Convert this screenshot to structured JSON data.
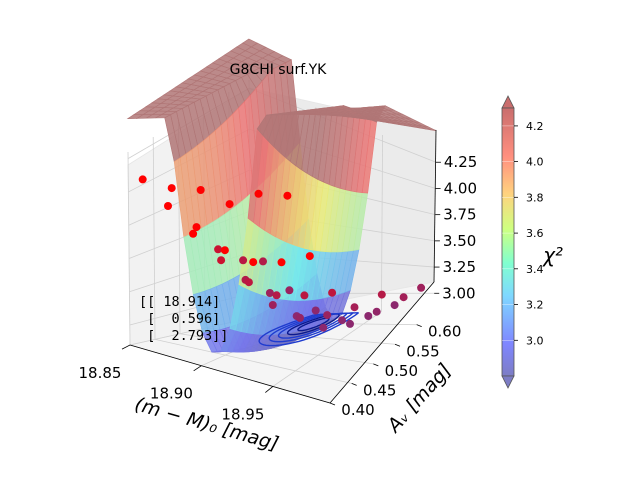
{
  "chart_data": {
    "type": "surface3d",
    "title": "G8CHI surf.YK",
    "xlabel": "(m − M)₀ [mag]",
    "ylabel": "Aᵥ [mag]",
    "zlabel": "",
    "xlim": [
      18.85,
      18.99
    ],
    "ylim": [
      0.4,
      0.64
    ],
    "zlim": [
      2.85,
      4.3
    ],
    "x_ticks": [
      "18.85",
      "18.90",
      "18.95"
    ],
    "y_ticks": [
      "0.40",
      "0.45",
      "0.50",
      "0.55",
      "0.60"
    ],
    "z_ticks": [
      "3.00",
      "3.25",
      "3.50",
      "3.75",
      "4.00",
      "4.25"
    ],
    "colorbar": {
      "label": "χ²",
      "ticks": [
        "3.0",
        "3.2",
        "3.4",
        "3.6",
        "3.8",
        "4.0",
        "4.2"
      ],
      "range": [
        2.8,
        4.3
      ],
      "colormap": "jet",
      "alpha": 0.5
    },
    "annotation": [
      "[[ 18.914]",
      " [  0.596]",
      " [  2.793]]"
    ],
    "best_fit": {
      "x": 18.914,
      "y": 0.596,
      "z": 2.793
    },
    "points": [
      {
        "x": 18.86,
        "y": 0.4,
        "z": 4.1
      },
      {
        "x": 18.88,
        "y": 0.4,
        "z": 4.05
      },
      {
        "x": 18.9,
        "y": 0.4,
        "z": 4.05
      },
      {
        "x": 18.92,
        "y": 0.4,
        "z": 3.97
      },
      {
        "x": 18.94,
        "y": 0.4,
        "z": 4.05
      },
      {
        "x": 18.96,
        "y": 0.4,
        "z": 4.05
      },
      {
        "x": 18.86,
        "y": 0.45,
        "z": 3.82
      },
      {
        "x": 18.88,
        "y": 0.45,
        "z": 3.7
      },
      {
        "x": 18.9,
        "y": 0.45,
        "z": 3.57
      },
      {
        "x": 18.92,
        "y": 0.45,
        "z": 3.52
      },
      {
        "x": 18.94,
        "y": 0.45,
        "z": 3.55
      },
      {
        "x": 18.96,
        "y": 0.45,
        "z": 3.62
      },
      {
        "x": 18.86,
        "y": 0.5,
        "z": 3.55
      },
      {
        "x": 18.88,
        "y": 0.5,
        "z": 3.4
      },
      {
        "x": 18.9,
        "y": 0.5,
        "z": 3.28
      },
      {
        "x": 18.92,
        "y": 0.5,
        "z": 3.22
      },
      {
        "x": 18.94,
        "y": 0.5,
        "z": 3.25
      },
      {
        "x": 18.96,
        "y": 0.5,
        "z": 3.3
      },
      {
        "x": 18.86,
        "y": 0.55,
        "z": 3.38
      },
      {
        "x": 18.88,
        "y": 0.55,
        "z": 3.2
      },
      {
        "x": 18.9,
        "y": 0.55,
        "z": 3.05
      },
      {
        "x": 18.92,
        "y": 0.55,
        "z": 2.98
      },
      {
        "x": 18.94,
        "y": 0.55,
        "z": 3.02
      },
      {
        "x": 18.96,
        "y": 0.55,
        "z": 3.1
      },
      {
        "x": 18.98,
        "y": 0.55,
        "z": 3.22
      },
      {
        "x": 18.86,
        "y": 0.6,
        "z": 3.25
      },
      {
        "x": 18.88,
        "y": 0.6,
        "z": 3.05
      },
      {
        "x": 18.9,
        "y": 0.6,
        "z": 2.9
      },
      {
        "x": 18.92,
        "y": 0.6,
        "z": 2.82
      },
      {
        "x": 18.94,
        "y": 0.6,
        "z": 2.85
      },
      {
        "x": 18.96,
        "y": 0.6,
        "z": 2.95
      },
      {
        "x": 18.98,
        "y": 0.6,
        "z": 3.08
      },
      {
        "x": 18.86,
        "y": 0.64,
        "z": 3.2
      },
      {
        "x": 18.88,
        "y": 0.64,
        "z": 3.02
      },
      {
        "x": 18.9,
        "y": 0.64,
        "z": 2.88
      },
      {
        "x": 18.92,
        "y": 0.64,
        "z": 2.8
      },
      {
        "x": 18.94,
        "y": 0.64,
        "z": 2.82
      },
      {
        "x": 18.96,
        "y": 0.64,
        "z": 2.9
      },
      {
        "x": 18.98,
        "y": 0.64,
        "z": 3.05
      }
    ]
  }
}
